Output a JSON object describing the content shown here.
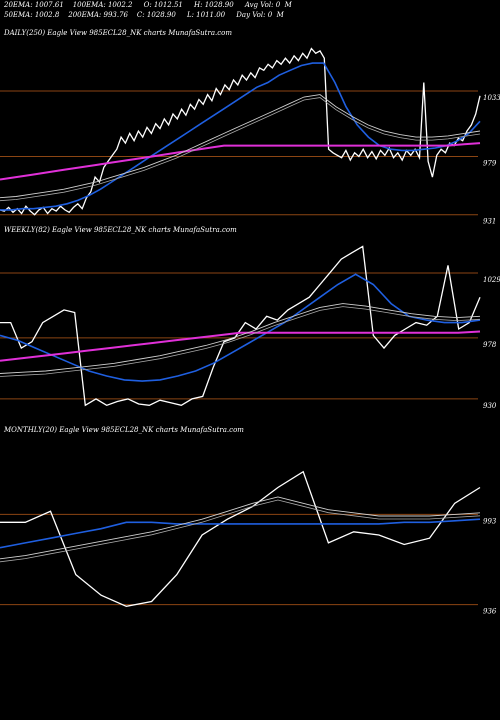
{
  "header": {
    "row1": [
      "20EMA: 1007.61",
      "100EMA: 1002.2",
      "O: 1012.51",
      "H: 1028.90",
      "Avg Vol: 0  M"
    ],
    "row2": [
      "50EMA: 1002.8",
      "200EMA: 993.76",
      "C: 1028.90",
      "L: 1011.00",
      "Day Vol: 0  M"
    ]
  },
  "colors": {
    "background": "#000000",
    "price": "#ffffff",
    "ema_fast": "#1f5fe0",
    "ema_slow": "#e030d8",
    "level_line": "#8b4513",
    "ema_other": "#cfcfcf"
  },
  "chart_data": [
    {
      "type": "line",
      "title": "DAILY(250) Eagle  View  985ECL28_NK charts MunafaSutra.com",
      "y_ticks": [
        "1033",
        "979",
        "931"
      ],
      "y_values": [
        1033,
        979,
        931
      ],
      "series": [
        {
          "role": "price",
          "values": [
            935,
            934,
            937,
            933,
            936,
            932,
            938,
            934,
            931,
            935,
            937,
            932,
            936,
            934,
            938,
            935,
            933,
            937,
            940,
            936,
            945,
            950,
            962,
            958,
            970,
            975,
            980,
            985,
            995,
            990,
            998,
            992,
            1000,
            995,
            1003,
            998,
            1006,
            1002,
            1010,
            1005,
            1014,
            1010,
            1018,
            1013,
            1022,
            1018,
            1026,
            1022,
            1030,
            1025,
            1035,
            1030,
            1038,
            1034,
            1042,
            1038,
            1046,
            1042,
            1048,
            1044,
            1052,
            1050,
            1055,
            1052,
            1058,
            1055,
            1060,
            1056,
            1062,
            1058,
            1064,
            1060,
            1068,
            1064,
            1066,
            1060,
            985,
            982,
            980,
            978,
            984,
            976,
            982,
            979,
            985,
            978,
            983,
            977,
            984,
            980,
            986,
            978,
            982,
            976,
            984,
            980,
            985,
            978,
            1040,
            975,
            962,
            980,
            985,
            982,
            990,
            988,
            994,
            992,
            1000,
            1005,
            1014,
            1029
          ]
        },
        {
          "role": "ema-fast",
          "values": [
            935,
            935,
            936,
            936,
            937,
            938,
            940,
            943,
            947,
            952,
            958,
            964,
            970,
            976,
            982,
            988,
            994,
            1000,
            1006,
            1012,
            1018,
            1024,
            1030,
            1036,
            1040,
            1046,
            1050,
            1054,
            1056,
            1056,
            1040,
            1020,
            1005,
            995,
            988,
            985,
            984,
            984,
            985,
            986,
            988,
            992,
            998,
            1008
          ]
        },
        {
          "role": "ema-slow",
          "values": [
            960,
            962,
            964,
            966,
            968,
            970,
            972,
            974,
            976,
            978,
            980,
            982,
            984,
            986,
            988,
            988,
            988,
            988,
            988,
            988,
            988,
            988,
            988,
            988,
            988,
            988,
            988,
            988,
            988,
            989,
            990
          ]
        },
        {
          "role": "ema-other",
          "values": [
            945,
            946,
            948,
            950,
            952,
            955,
            958,
            962,
            966,
            970,
            975,
            980,
            986,
            992,
            998,
            1004,
            1010,
            1016,
            1022,
            1028,
            1030,
            1020,
            1012,
            1005,
            1000,
            997,
            995,
            995,
            996,
            998,
            1000
          ]
        }
      ]
    },
    {
      "type": "line",
      "title": "WEEKLY(82) Eagle  View  985ECL28_NK charts MunafaSutra.com",
      "y_ticks": [
        "1029",
        "978",
        "930"
      ],
      "y_values": [
        1029,
        978,
        930
      ],
      "series": [
        {
          "role": "price",
          "values": [
            990,
            990,
            970,
            975,
            990,
            995,
            1000,
            998,
            925,
            930,
            925,
            928,
            930,
            926,
            925,
            929,
            927,
            925,
            930,
            932,
            955,
            975,
            978,
            990,
            985,
            995,
            992,
            1000,
            1005,
            1010,
            1020,
            1030,
            1040,
            1045,
            1050,
            980,
            970,
            980,
            985,
            990,
            988,
            995,
            1035,
            985,
            990,
            1010
          ]
        },
        {
          "role": "ema-fast",
          "values": [
            980,
            976,
            970,
            964,
            958,
            952,
            948,
            945,
            944,
            945,
            948,
            952,
            958,
            966,
            974,
            982,
            990,
            1000,
            1010,
            1020,
            1028,
            1020,
            1005,
            995,
            992,
            990,
            990,
            992
          ]
        },
        {
          "role": "ema-slow",
          "values": [
            960,
            962,
            964,
            966,
            968,
            970,
            972,
            974,
            976,
            978,
            980,
            982,
            982,
            982,
            982,
            982,
            982,
            982,
            982,
            982,
            982,
            982,
            983
          ]
        },
        {
          "role": "ema-other",
          "values": [
            950,
            951,
            952,
            954,
            956,
            958,
            961,
            964,
            968,
            972,
            977,
            983,
            990,
            996,
            1002,
            1005,
            1003,
            1000,
            997,
            995,
            994,
            995
          ]
        }
      ]
    },
    {
      "type": "line",
      "title": "MONTHLY(20) Eagle  View  985ECL28_NK charts MunafaSutra.com",
      "y_ticks": [
        "993",
        "936"
      ],
      "y_values": [
        993,
        936
      ],
      "series": [
        {
          "role": "price",
          "values": [
            988,
            988,
            995,
            955,
            942,
            935,
            938,
            955,
            980,
            990,
            998,
            1010,
            1020,
            975,
            982,
            980,
            974,
            978,
            1000,
            1010
          ]
        },
        {
          "role": "ema-fast",
          "values": [
            972,
            975,
            978,
            981,
            984,
            988,
            988,
            987,
            987,
            987,
            987,
            987,
            987,
            987,
            987,
            987,
            988,
            988,
            989,
            990
          ]
        },
        {
          "role": "ema-other",
          "values": [
            965,
            967,
            970,
            973,
            976,
            979,
            982,
            986,
            990,
            995,
            1000,
            1004,
            1000,
            996,
            994,
            992,
            992,
            992,
            993,
            994
          ]
        }
      ]
    }
  ]
}
